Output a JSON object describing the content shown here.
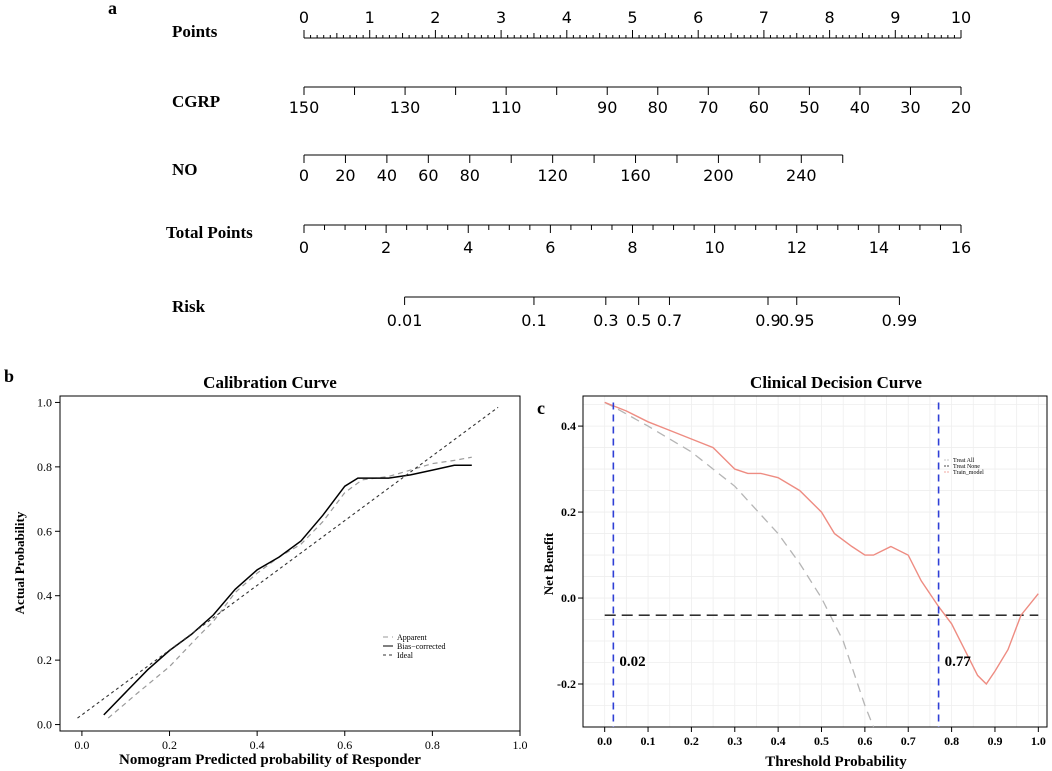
{
  "panel_labels": {
    "a": "a",
    "b": "b",
    "c": "c"
  },
  "chart_data": [
    {
      "type": "nomogram",
      "panel": "a",
      "rows": [
        {
          "name": "Points",
          "min": 0,
          "max": 10,
          "tick_labels": [
            "0",
            "1",
            "2",
            "3",
            "4",
            "5",
            "6",
            "7",
            "8",
            "9",
            "10"
          ],
          "label_values": [
            0,
            1,
            2,
            3,
            4,
            5,
            6,
            7,
            8,
            9,
            10
          ]
        },
        {
          "name": "CGRP",
          "points_at_150": 0,
          "points_at_20": 10,
          "tick_labels": [
            "150",
            "130",
            "110",
            "90",
            "80",
            "70",
            "60",
            "50",
            "40",
            "30",
            "20"
          ],
          "label_values": [
            150,
            130,
            110,
            90,
            80,
            70,
            60,
            50,
            40,
            30,
            20
          ]
        },
        {
          "name": "NO",
          "points_at_0": 0,
          "points_at_260": 8.2,
          "tick_labels": [
            "0",
            "20",
            "40",
            "60",
            "80",
            "120",
            "160",
            "200",
            "240"
          ],
          "label_values": [
            0,
            20,
            40,
            60,
            80,
            120,
            160,
            200,
            240
          ]
        },
        {
          "name": "Total Points",
          "min": 0,
          "max": 16,
          "tick_labels": [
            "0",
            "2",
            "4",
            "6",
            "8",
            "10",
            "12",
            "14",
            "16"
          ],
          "label_values": [
            0,
            2,
            4,
            6,
            8,
            10,
            12,
            14,
            16
          ]
        },
        {
          "name": "Risk",
          "tick_labels": [
            "0.01",
            "0.1",
            "0.3",
            "0.5",
            "0.7",
            "0.9",
            "0.95",
            "0.99"
          ],
          "total_points": [
            2.45,
            5.6,
            7.35,
            8.15,
            8.9,
            11.3,
            12.0,
            14.5
          ]
        }
      ]
    },
    {
      "type": "line",
      "panel": "b",
      "title": "Calibration Curve",
      "xlabel": "Nomogram Predicted probability of Responder",
      "ylabel": "Actual Probability",
      "xlim": [
        -0.05,
        1.0
      ],
      "ylim": [
        -0.02,
        1.02
      ],
      "x_ticks": [
        "0.0",
        "0.2",
        "0.4",
        "0.6",
        "0.8",
        "1.0"
      ],
      "y_ticks": [
        "0.0",
        "0.2",
        "0.4",
        "0.6",
        "0.8",
        "1.0"
      ],
      "legend": [
        "Apparent",
        "Bias−corrected",
        "Ideal"
      ],
      "legend_position": "bottom-right",
      "series": [
        {
          "name": "Apparent",
          "style": "dashed-gray",
          "x": [
            0.06,
            0.12,
            0.2,
            0.27,
            0.3,
            0.35,
            0.4,
            0.45,
            0.5,
            0.55,
            0.6,
            0.64,
            0.7,
            0.75,
            0.8,
            0.85,
            0.89
          ],
          "y": [
            0.02,
            0.09,
            0.18,
            0.28,
            0.32,
            0.41,
            0.47,
            0.52,
            0.56,
            0.63,
            0.72,
            0.76,
            0.77,
            0.79,
            0.81,
            0.82,
            0.83
          ]
        },
        {
          "name": "Bias−corrected",
          "style": "solid-black",
          "x": [
            0.05,
            0.1,
            0.15,
            0.2,
            0.25,
            0.3,
            0.35,
            0.4,
            0.45,
            0.5,
            0.55,
            0.6,
            0.63,
            0.65,
            0.7,
            0.75,
            0.8,
            0.85,
            0.89
          ],
          "y": [
            0.03,
            0.1,
            0.17,
            0.23,
            0.28,
            0.34,
            0.42,
            0.48,
            0.52,
            0.57,
            0.65,
            0.74,
            0.765,
            0.765,
            0.765,
            0.775,
            0.79,
            0.805,
            0.805
          ]
        },
        {
          "name": "Ideal",
          "style": "dotted-black",
          "x": [
            -0.01,
            0.95
          ],
          "y": [
            0.02,
            0.985
          ]
        }
      ]
    },
    {
      "type": "line",
      "panel": "c",
      "title": "Clinical Decision Curve",
      "xlabel": "Threshold Probability",
      "ylabel": "Net Benefit",
      "xlim": [
        -0.05,
        1.02
      ],
      "ylim": [
        -0.3,
        0.47
      ],
      "x_ticks": [
        "0.0",
        "0.1",
        "0.2",
        "0.3",
        "0.4",
        "0.5",
        "0.6",
        "0.7",
        "0.8",
        "0.9",
        "1.0"
      ],
      "y_ticks": [
        "-0.2",
        "0.0",
        "0.2",
        "0.4"
      ],
      "legend": [
        "Treat All",
        "Treat None",
        "Train_model"
      ],
      "legend_position": "top-right",
      "annotations": [
        {
          "text": "0.02",
          "x": 0.02
        },
        {
          "text": "0.77",
          "x": 0.77
        }
      ],
      "series": [
        {
          "name": "Treat All",
          "style": "dashed-gray",
          "x": [
            0.0,
            0.02,
            0.1,
            0.2,
            0.3,
            0.4,
            0.45,
            0.5,
            0.55,
            0.6,
            0.62
          ],
          "y": [
            0.455,
            0.445,
            0.4,
            0.34,
            0.26,
            0.15,
            0.08,
            0.0,
            -0.1,
            -0.25,
            -0.3
          ]
        },
        {
          "name": "Treat None",
          "style": "dashed-black",
          "x": [
            0.0,
            1.0
          ],
          "y": [
            -0.04,
            -0.04
          ]
        },
        {
          "name": "Train_model",
          "style": "solid-salmon",
          "x": [
            0.0,
            0.05,
            0.1,
            0.15,
            0.2,
            0.25,
            0.28,
            0.3,
            0.33,
            0.36,
            0.4,
            0.45,
            0.5,
            0.53,
            0.57,
            0.6,
            0.62,
            0.66,
            0.7,
            0.73,
            0.77,
            0.8,
            0.83,
            0.86,
            0.88,
            0.9,
            0.93,
            0.96,
            1.0
          ],
          "y": [
            0.455,
            0.435,
            0.41,
            0.39,
            0.37,
            0.35,
            0.32,
            0.3,
            0.29,
            0.29,
            0.28,
            0.25,
            0.2,
            0.15,
            0.12,
            0.1,
            0.1,
            0.12,
            0.1,
            0.04,
            -0.02,
            -0.06,
            -0.12,
            -0.18,
            -0.2,
            -0.17,
            -0.12,
            -0.04,
            0.01
          ]
        }
      ]
    }
  ]
}
